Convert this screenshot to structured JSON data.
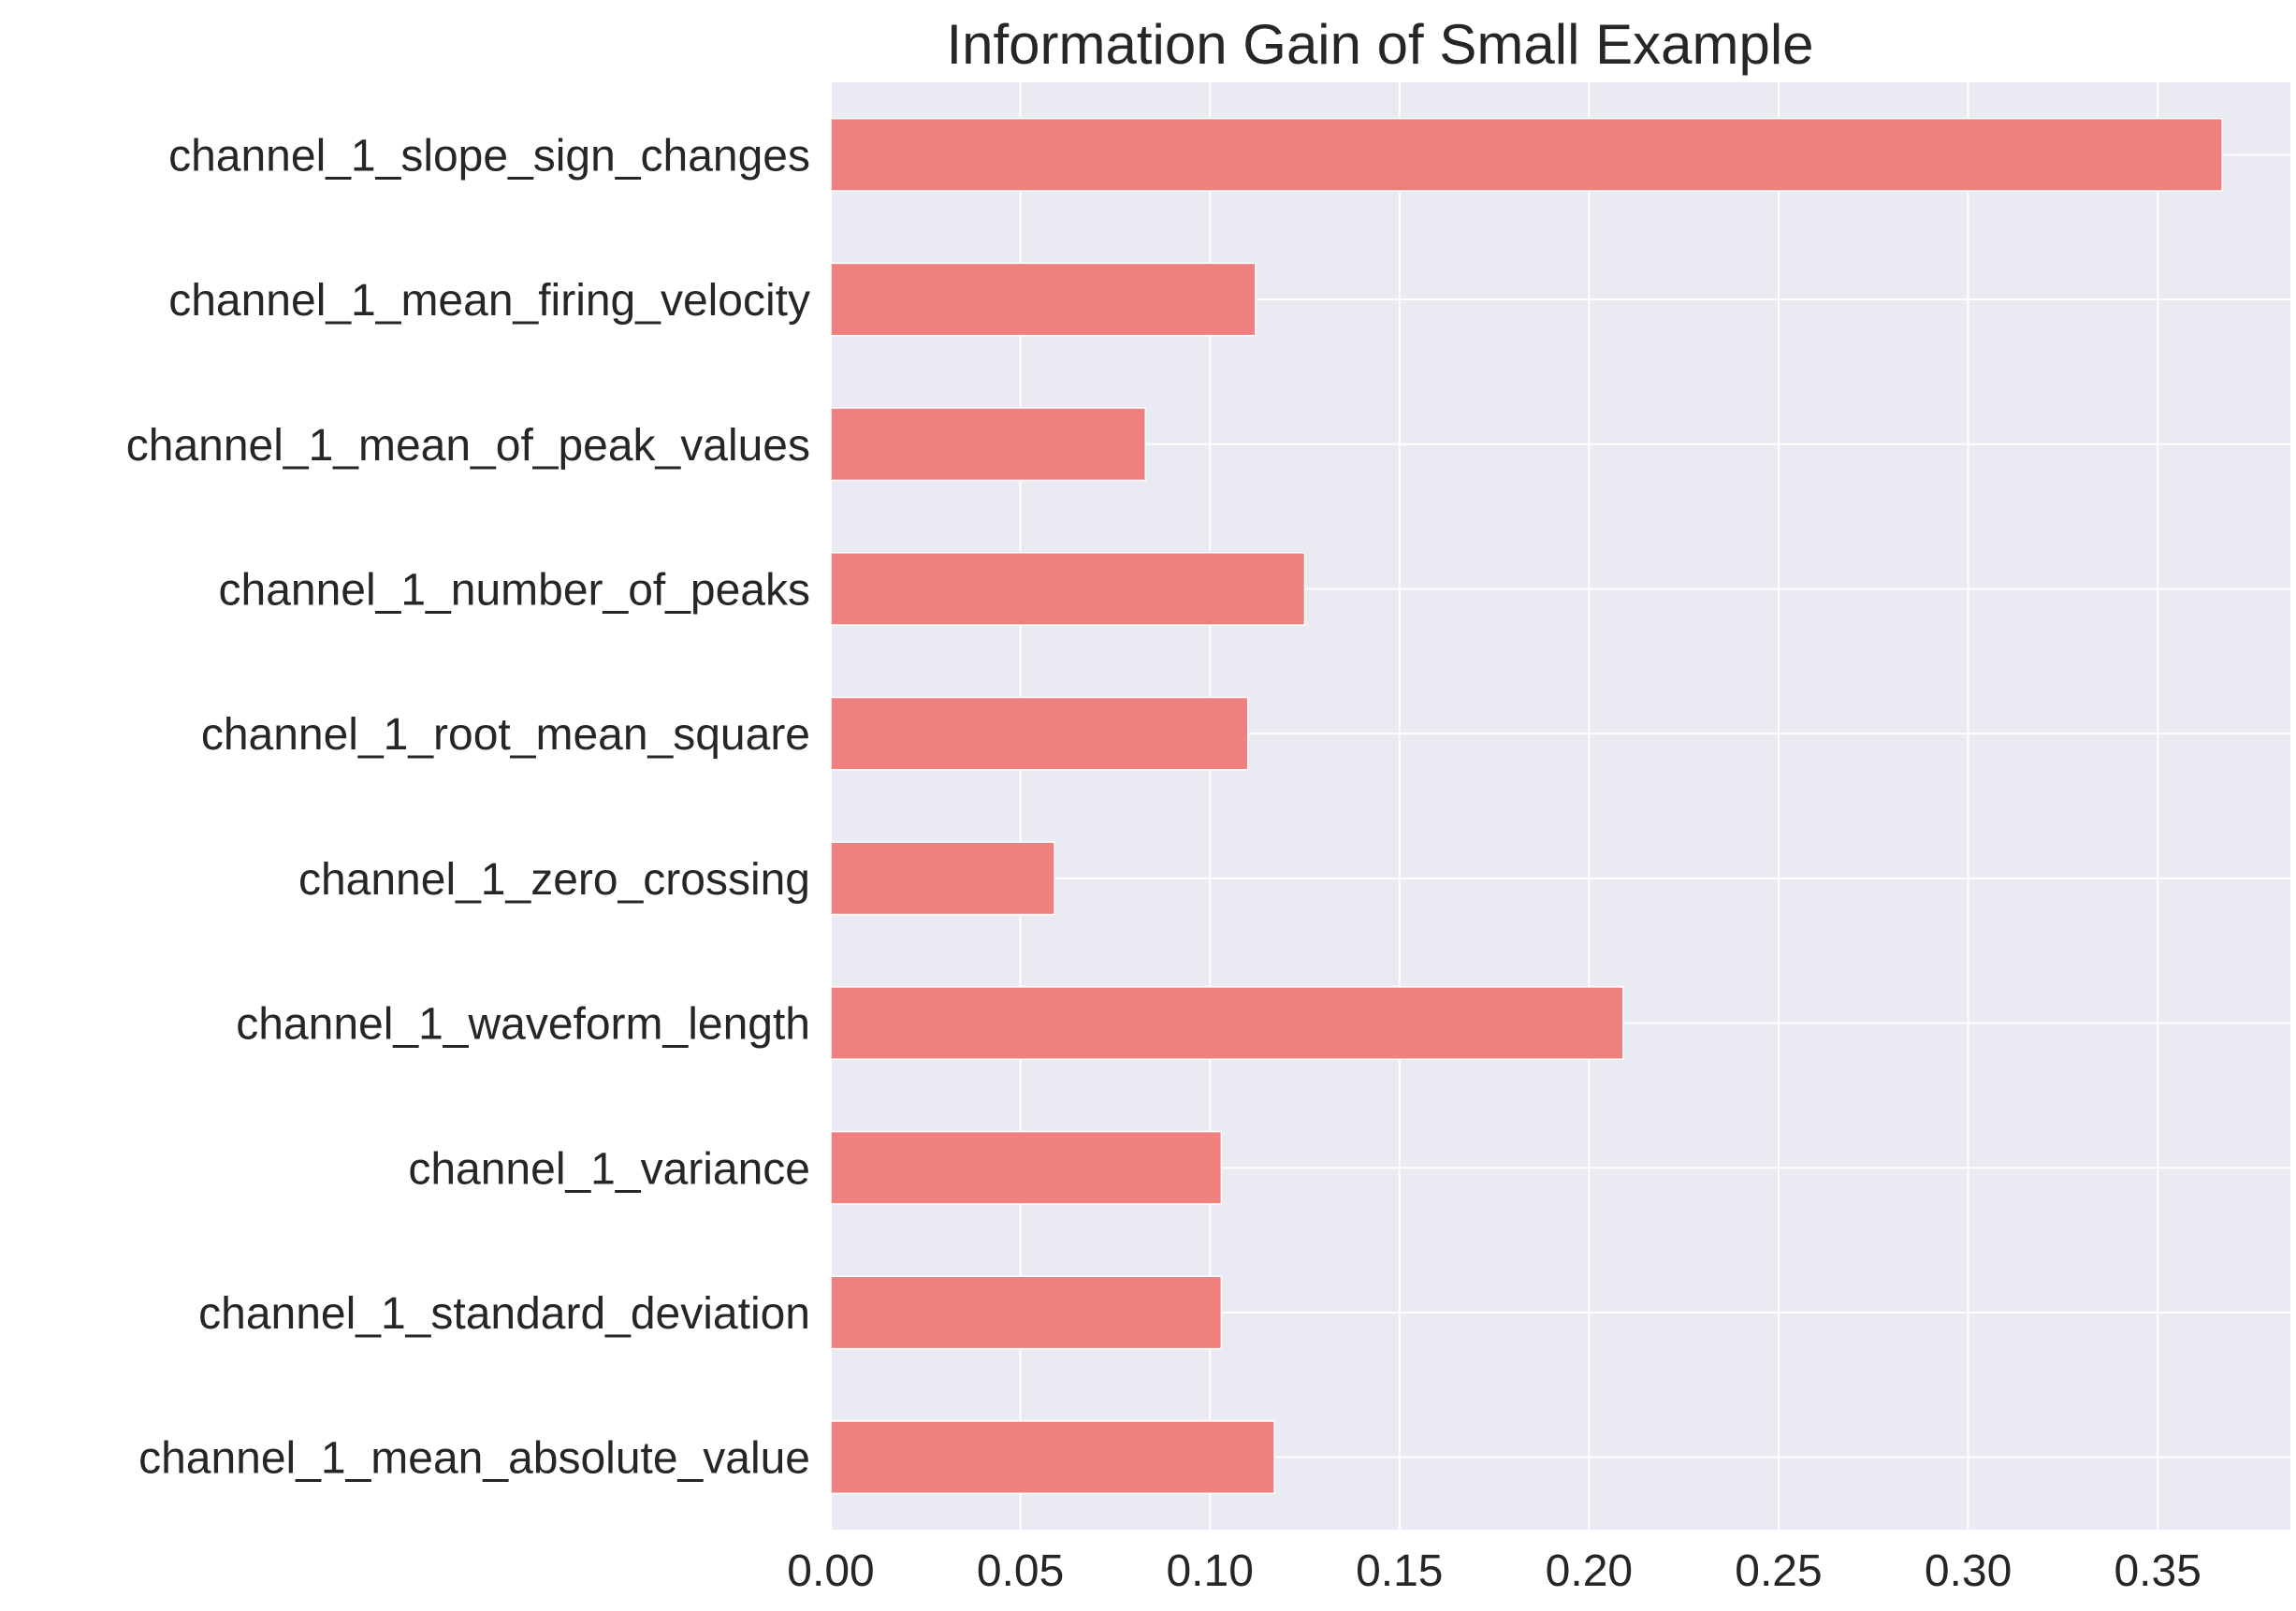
{
  "chart_data": {
    "type": "bar",
    "orientation": "horizontal",
    "title": "Information Gain of Small Example",
    "xlabel": "",
    "ylabel": "",
    "xlim": [
      0,
      0.385
    ],
    "xticks": [
      0.0,
      0.05,
      0.1,
      0.15,
      0.2,
      0.25,
      0.3,
      0.35
    ],
    "xtick_labels": [
      "0.00",
      "0.05",
      "0.10",
      "0.15",
      "0.20",
      "0.25",
      "0.30",
      "0.35"
    ],
    "grid": true,
    "bar_color": "#f08080",
    "background_color": "#eaeaf2",
    "grid_color": "#ffffff",
    "categories": [
      "channel_1_slope_sign_changes",
      "channel_1_mean_firing_velocity",
      "channel_1_mean_of_peak_values",
      "channel_1_number_of_peaks",
      "channel_1_root_mean_square",
      "channel_1_zero_crossing",
      "channel_1_waveform_length",
      "channel_1_variance",
      "channel_1_standard_deviation",
      "channel_1_mean_absolute_value"
    ],
    "values": [
      0.367,
      0.112,
      0.083,
      0.125,
      0.11,
      0.059,
      0.209,
      0.103,
      0.103,
      0.117
    ]
  }
}
